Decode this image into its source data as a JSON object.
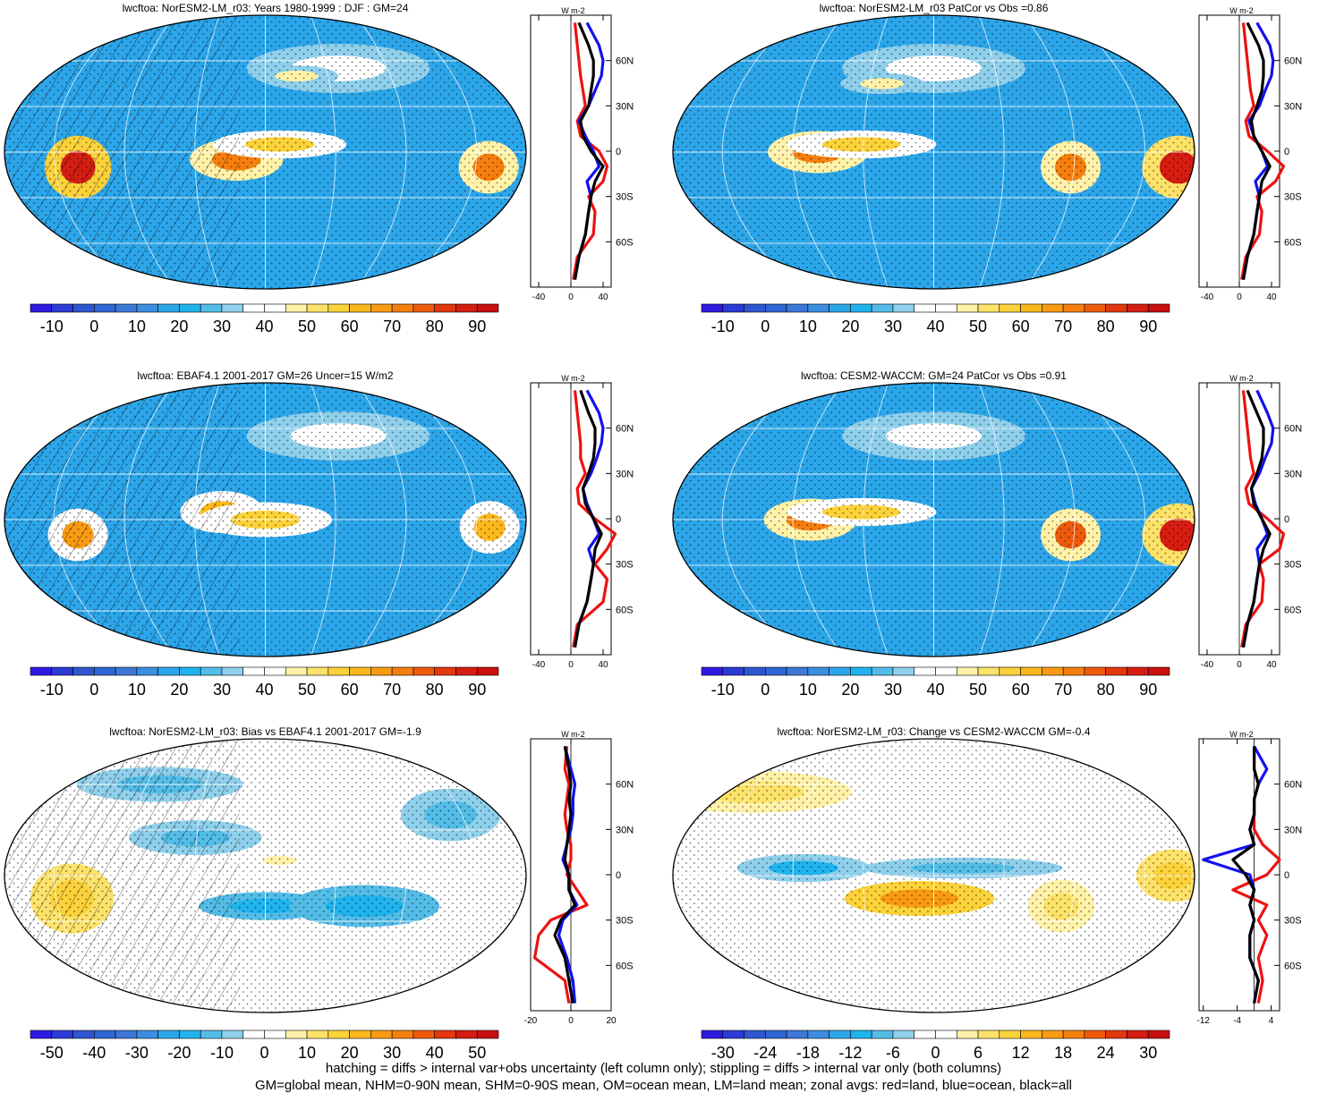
{
  "chart_data": [
    {
      "type": "heatmap",
      "title": "lwcftoa: NorESM2-LM_r03: Years 1980-1999 : DJF : GM=24",
      "colorbar": {
        "min": -15,
        "max": 95,
        "step": 5,
        "ticks": [
          -10,
          0,
          10,
          20,
          30,
          40,
          50,
          60,
          70,
          80,
          90
        ]
      },
      "blobs": [
        {
          "lon": 20,
          "lat": -10,
          "value": 88,
          "w": 20,
          "h": 18
        },
        {
          "lon": 130,
          "lat": -5,
          "value": 70,
          "w": 28,
          "h": 12
        },
        {
          "lon": 160,
          "lat": 5,
          "value": 55,
          "w": 40,
          "h": 8
        },
        {
          "lon": -55,
          "lat": -10,
          "value": 70,
          "w": 18,
          "h": 15
        },
        {
          "lon": -150,
          "lat": 55,
          "value": 40,
          "w": 55,
          "h": 14
        },
        {
          "lon": 175,
          "lat": 50,
          "value": 45,
          "w": 25,
          "h": 6
        }
      ],
      "profile": {
        "xlim": [
          -50,
          50
        ],
        "xticks": [
          -40,
          0,
          40
        ],
        "xlabel": "W m-2",
        "ylabels": [
          "60N",
          "30N",
          "0",
          "30S",
          "60S"
        ],
        "lats": [
          -85,
          -70,
          -55,
          -40,
          -30,
          -20,
          -10,
          0,
          10,
          20,
          30,
          40,
          50,
          60,
          70,
          85
        ],
        "all": [
          5,
          10,
          18,
          22,
          25,
          30,
          40,
          25,
          15,
          12,
          22,
          25,
          28,
          28,
          22,
          10
        ],
        "ocean": [
          5,
          10,
          18,
          22,
          25,
          20,
          35,
          28,
          18,
          10,
          22,
          30,
          38,
          40,
          35,
          20
        ],
        "land": [
          3,
          8,
          28,
          30,
          22,
          40,
          45,
          35,
          12,
          8,
          18,
          15,
          12,
          10,
          8,
          5
        ]
      }
    },
    {
      "type": "heatmap",
      "title": "lwcftoa: NorESM2-LM_r03 PatCor vs Obs =0.86",
      "colorbar": {
        "min": -15,
        "max": 95,
        "step": 5,
        "ticks": [
          -10,
          0,
          10,
          20,
          30,
          40,
          50,
          60,
          70,
          80,
          90
        ]
      },
      "blobs": [
        {
          "lon": 20,
          "lat": -10,
          "value": 85,
          "w": 22,
          "h": 18
        },
        {
          "lon": 130,
          "lat": 0,
          "value": 70,
          "w": 30,
          "h": 12
        },
        {
          "lon": 160,
          "lat": 5,
          "value": 55,
          "w": 45,
          "h": 8
        },
        {
          "lon": -55,
          "lat": -10,
          "value": 70,
          "w": 18,
          "h": 15
        },
        {
          "lon": -150,
          "lat": 55,
          "value": 40,
          "w": 55,
          "h": 14
        },
        {
          "lon": 170,
          "lat": 45,
          "value": 45,
          "w": 25,
          "h": 6
        }
      ],
      "profile": {
        "xlim": [
          -50,
          50
        ],
        "xticks": [
          -40,
          0,
          40
        ],
        "xlabel": "W m-2",
        "ylabels": [
          "60N",
          "30N",
          "0",
          "30S",
          "60S"
        ],
        "lats": [
          -85,
          -70,
          -55,
          -40,
          -30,
          -20,
          -10,
          0,
          10,
          20,
          30,
          40,
          50,
          60,
          70,
          85
        ],
        "all": [
          5,
          10,
          18,
          22,
          25,
          28,
          38,
          28,
          18,
          15,
          22,
          28,
          30,
          30,
          24,
          10
        ],
        "ocean": [
          5,
          10,
          18,
          22,
          25,
          20,
          35,
          28,
          18,
          12,
          25,
          32,
          40,
          42,
          38,
          22
        ],
        "land": [
          3,
          8,
          25,
          28,
          22,
          45,
          55,
          35,
          12,
          8,
          18,
          14,
          12,
          10,
          8,
          5
        ]
      }
    },
    {
      "type": "heatmap",
      "title": "lwcftoa: EBAF4.1 2001-2017 GM=26 Uncer=15 W/m2",
      "colorbar": {
        "min": -15,
        "max": 95,
        "step": 5,
        "ticks": [
          -10,
          0,
          10,
          20,
          30,
          40,
          50,
          60,
          70,
          80,
          90
        ]
      },
      "blobs": [
        {
          "lon": 20,
          "lat": -10,
          "value": 65,
          "w": 18,
          "h": 15
        },
        {
          "lon": 120,
          "lat": 5,
          "value": 62,
          "w": 25,
          "h": 12
        },
        {
          "lon": 150,
          "lat": 0,
          "value": 55,
          "w": 40,
          "h": 10
        },
        {
          "lon": -55,
          "lat": -5,
          "value": 62,
          "w": 18,
          "h": 15
        },
        {
          "lon": -150,
          "lat": 55,
          "value": 40,
          "w": 55,
          "h": 14
        }
      ],
      "profile": {
        "xlim": [
          -50,
          50
        ],
        "xticks": [
          -40,
          0,
          40
        ],
        "xlabel": "W m-2",
        "ylabels": [
          "60N",
          "30N",
          "0",
          "30S",
          "60S"
        ],
        "lats": [
          -85,
          -70,
          -55,
          -40,
          -30,
          -20,
          -10,
          0,
          10,
          20,
          30,
          40,
          50,
          60,
          70,
          85
        ],
        "all": [
          5,
          10,
          20,
          25,
          28,
          30,
          38,
          28,
          18,
          15,
          22,
          28,
          30,
          30,
          22,
          12
        ],
        "ocean": [
          5,
          10,
          20,
          25,
          28,
          22,
          35,
          28,
          20,
          15,
          25,
          32,
          38,
          40,
          35,
          20
        ],
        "land": [
          3,
          8,
          40,
          45,
          30,
          45,
          55,
          30,
          10,
          8,
          18,
          12,
          12,
          10,
          8,
          5
        ]
      }
    },
    {
      "type": "heatmap",
      "title": "lwcftoa: CESM2-WACCM: GM=24 PatCor vs Obs =0.91",
      "colorbar": {
        "min": -15,
        "max": 95,
        "step": 5,
        "ticks": [
          -10,
          0,
          10,
          20,
          30,
          40,
          50,
          60,
          70,
          80,
          90
        ]
      },
      "blobs": [
        {
          "lon": 20,
          "lat": -10,
          "value": 85,
          "w": 22,
          "h": 18
        },
        {
          "lon": 125,
          "lat": 0,
          "value": 72,
          "w": 28,
          "h": 12
        },
        {
          "lon": 160,
          "lat": 5,
          "value": 58,
          "w": 45,
          "h": 8
        },
        {
          "lon": -55,
          "lat": -10,
          "value": 75,
          "w": 18,
          "h": 15
        },
        {
          "lon": -150,
          "lat": 55,
          "value": 40,
          "w": 55,
          "h": 14
        }
      ],
      "profile": {
        "xlim": [
          -50,
          50
        ],
        "xticks": [
          -40,
          0,
          40
        ],
        "xlabel": "W m-2",
        "ylabels": [
          "60N",
          "30N",
          "0",
          "30S",
          "60S"
        ],
        "lats": [
          -85,
          -70,
          -55,
          -40,
          -30,
          -20,
          -10,
          0,
          10,
          20,
          30,
          40,
          50,
          60,
          70,
          85
        ],
        "all": [
          5,
          10,
          18,
          22,
          25,
          30,
          38,
          28,
          18,
          15,
          22,
          28,
          30,
          30,
          22,
          10
        ],
        "ocean": [
          5,
          10,
          18,
          22,
          25,
          22,
          35,
          28,
          20,
          15,
          25,
          32,
          40,
          42,
          35,
          22
        ],
        "land": [
          3,
          8,
          28,
          30,
          25,
          50,
          55,
          35,
          12,
          8,
          18,
          14,
          12,
          10,
          8,
          5
        ]
      }
    },
    {
      "type": "heatmap",
      "title": "lwcftoa: NorESM2-LM_r03: Bias vs EBAF4.1 2001-2017 GM=-1.9",
      "colorbar": {
        "min": -55,
        "max": 55,
        "step": 5,
        "ticks": [
          -50,
          -40,
          -30,
          -20,
          -10,
          0,
          10,
          20,
          30,
          40,
          50
        ]
      },
      "blobs": [
        {
          "lon": 15,
          "lat": -15,
          "value": 20,
          "w": 25,
          "h": 20
        },
        {
          "lon": 150,
          "lat": -20,
          "value": -20,
          "w": 40,
          "h": 8
        },
        {
          "lon": -140,
          "lat": -20,
          "value": -18,
          "w": 45,
          "h": 12
        },
        {
          "lon": 100,
          "lat": 25,
          "value": -12,
          "w": 40,
          "h": 10
        },
        {
          "lon": -70,
          "lat": 40,
          "value": -12,
          "w": 30,
          "h": 15
        },
        {
          "lon": 60,
          "lat": 60,
          "value": -12,
          "w": 50,
          "h": 10
        },
        {
          "lon": 160,
          "lat": 10,
          "value": 8,
          "w": 20,
          "h": 5
        }
      ],
      "profile": {
        "xlim": [
          -20,
          20
        ],
        "xticks": [
          -20,
          0,
          20
        ],
        "xlabel": "W m-2",
        "ylabels": [
          "60N",
          "30N",
          "0",
          "30S",
          "60S"
        ],
        "lats": [
          -85,
          -70,
          -55,
          -40,
          -30,
          -20,
          -10,
          0,
          10,
          20,
          30,
          40,
          50,
          60,
          70,
          85
        ],
        "all": [
          1,
          -1,
          -3,
          -8,
          -5,
          2,
          -1,
          -1,
          -3,
          -2,
          -1,
          0,
          -1,
          0,
          -1,
          -3
        ],
        "ocean": [
          2,
          1,
          -2,
          -6,
          -4,
          3,
          -1,
          -1,
          -4,
          -2,
          0,
          1,
          1,
          2,
          0,
          -3
        ],
        "land": [
          -1,
          -3,
          -18,
          -16,
          -10,
          8,
          3,
          -2,
          0,
          0,
          -2,
          -3,
          -2,
          -1,
          -3,
          -2
        ]
      }
    },
    {
      "type": "heatmap",
      "title": "lwcftoa: NorESM2-LM_r03: Change vs CESM2-WACCM GM=-0.4",
      "colorbar": {
        "min": -33,
        "max": 33,
        "step": 3,
        "ticks": [
          -30,
          -24,
          -18,
          -12,
          -6,
          0,
          6,
          12,
          18,
          24,
          30
        ]
      },
      "blobs": [
        {
          "lon": 15,
          "lat": 0,
          "value": 12,
          "w": 22,
          "h": 15
        },
        {
          "lon": -160,
          "lat": -15,
          "value": 15,
          "w": 45,
          "h": 10
        },
        {
          "lon": 120,
          "lat": 5,
          "value": -10,
          "w": 40,
          "h": 8
        },
        {
          "lon": -130,
          "lat": 5,
          "value": -8,
          "w": 60,
          "h": 6
        },
        {
          "lon": 60,
          "lat": 55,
          "value": 6,
          "w": 60,
          "h": 12
        },
        {
          "lon": -60,
          "lat": -20,
          "value": 8,
          "w": 20,
          "h": 15
        }
      ],
      "profile": {
        "xlim": [
          -13,
          6
        ],
        "xticks": [
          -12,
          -4,
          4
        ],
        "xlabel": "W m-2",
        "ylabels": [
          "60N",
          "30N",
          "0",
          "30S",
          "60S"
        ],
        "lats": [
          -85,
          -70,
          -55,
          -40,
          -30,
          -20,
          -10,
          0,
          10,
          20,
          30,
          40,
          50,
          60,
          70,
          85
        ],
        "all": [
          0,
          1,
          -1,
          -1,
          0,
          -1,
          0,
          -2,
          -5,
          0,
          -1,
          0,
          0,
          1,
          0,
          0
        ],
        "ocean": [
          0,
          1,
          -1,
          -1,
          0,
          -1,
          0,
          -1,
          -12,
          0,
          -1,
          0,
          0,
          1,
          3,
          0
        ],
        "land": [
          1,
          2,
          1,
          3,
          1,
          3,
          -5,
          3,
          6,
          2,
          0,
          0,
          0,
          1,
          0,
          0
        ]
      }
    }
  ],
  "footnotes": {
    "line1": "hatching = diffs > internal var+obs uncertainty (left column only); stippling = diffs > internal var only (both columns)",
    "line2": "GM=global mean, NHM=0-90N mean, SHM=0-90S mean, OM=ocean mean, LM=land mean; zonal avgs: red=land, blue=ocean, black=all"
  }
}
